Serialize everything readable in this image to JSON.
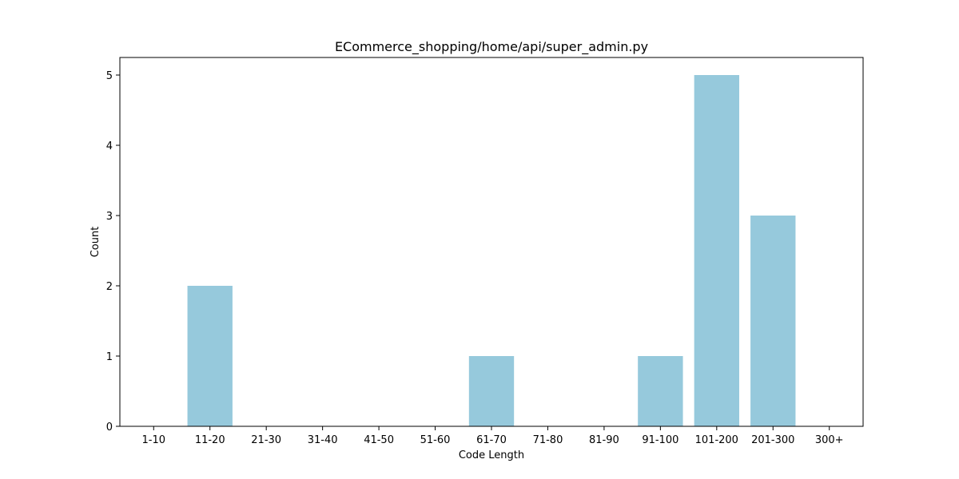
{
  "chart_data": {
    "type": "bar",
    "title": "ECommerce_shopping/home/api/super_admin.py",
    "xlabel": "Code Length",
    "ylabel": "Count",
    "categories": [
      "1-10",
      "11-20",
      "21-30",
      "31-40",
      "41-50",
      "51-60",
      "61-70",
      "71-80",
      "81-90",
      "91-100",
      "101-200",
      "201-300",
      "300+"
    ],
    "values": [
      0,
      2,
      0,
      0,
      0,
      0,
      1,
      0,
      0,
      1,
      5,
      3,
      0
    ],
    "ylim": [
      0,
      5.25
    ],
    "yticks": [
      0,
      1,
      2,
      3,
      4,
      5
    ],
    "bar_color": "#96c9dc",
    "grid": false,
    "legend": "none"
  }
}
